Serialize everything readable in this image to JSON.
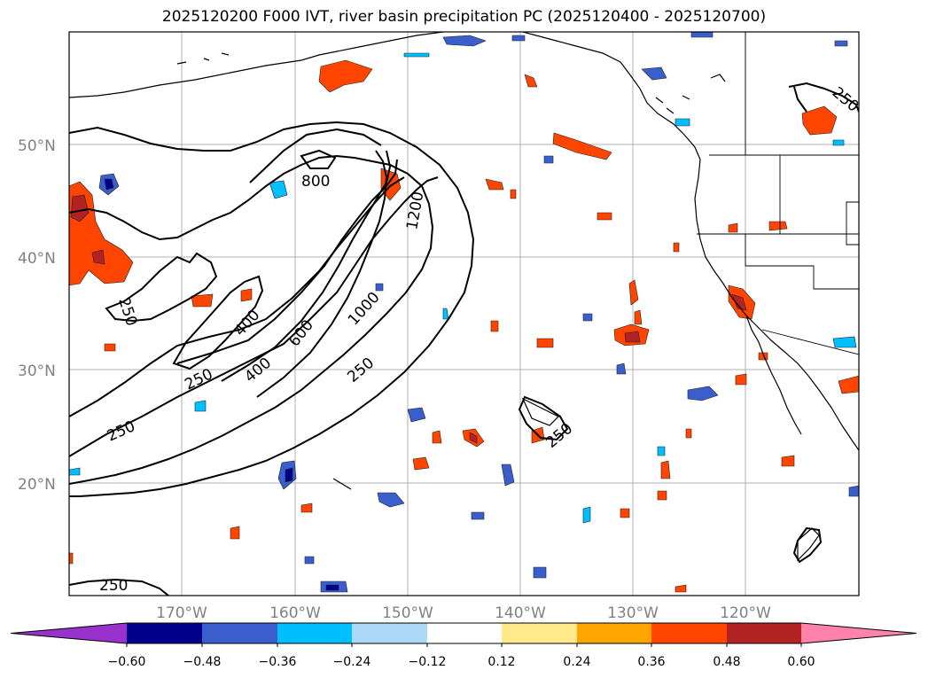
{
  "title": "2025120200 F000 IVT, river basin precipitation PC (2025120400 - 2025120700)",
  "map": {
    "lat_labels": [
      "50°N",
      "40°N",
      "30°N",
      "20°N"
    ],
    "lon_labels": [
      "170°W",
      "160°W",
      "150°W",
      "140°W",
      "130°W",
      "120°W"
    ],
    "ivt_contour_labels": [
      "800",
      "1200",
      "1000",
      "600",
      "400",
      "400",
      "250",
      "250",
      "250",
      "250",
      "250",
      "250",
      "250"
    ]
  },
  "colorbar": {
    "tick_labels": [
      "−0.60",
      "−0.48",
      "−0.36",
      "−0.24",
      "−0.12",
      "0.12",
      "0.24",
      "0.36",
      "0.48",
      "0.60"
    ],
    "colors": [
      "#9932cc",
      "#00008b",
      "#3a5fcd",
      "#00bfff",
      "#add8f6",
      "#ffffff",
      "#ffe98a",
      "#ffa500",
      "#ff4500",
      "#b22222",
      "#ff82ab"
    ]
  }
}
